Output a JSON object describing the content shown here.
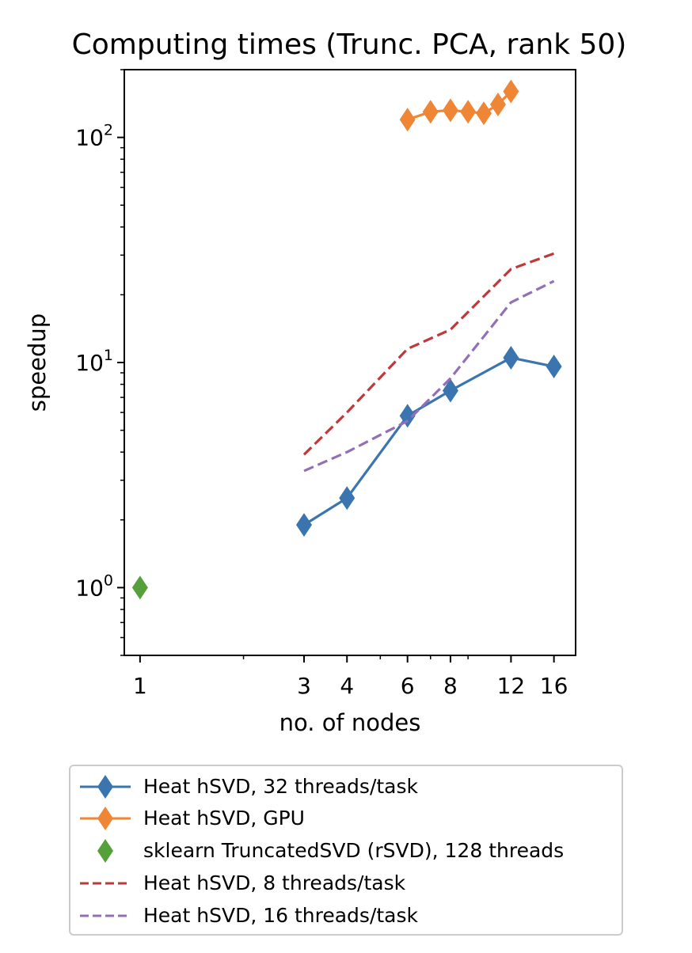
{
  "chart_data": {
    "type": "line",
    "title": "Computing times (Trunc. PCA, rank 50)",
    "xlabel": "no. of nodes",
    "ylabel": "speedup",
    "xscale": "log",
    "yscale": "log",
    "xlim": [
      0.9,
      18.5
    ],
    "ylim": [
      0.5,
      200
    ],
    "xticks": [
      1,
      3,
      4,
      6,
      8,
      12,
      16
    ],
    "xtick_labels": [
      "1",
      "3",
      "4",
      "6",
      "8",
      "12",
      "16"
    ],
    "yticks": [
      1,
      10,
      100
    ],
    "ytick_labels": [
      {
        "base": "10",
        "exp": "0"
      },
      {
        "base": "10",
        "exp": "1"
      },
      {
        "base": "10",
        "exp": "2"
      }
    ],
    "legend_position": "below",
    "series": [
      {
        "name": "Heat hSVD, 32 threads/task",
        "color": "#3a75b0",
        "style": "solid",
        "marker": "diamond",
        "x": [
          3,
          4,
          6,
          8,
          12,
          16
        ],
        "y": [
          1.9,
          2.5,
          5.8,
          7.5,
          10.5,
          9.6
        ]
      },
      {
        "name": "Heat hSVD, GPU",
        "color": "#ef8635",
        "style": "solid",
        "marker": "diamond",
        "x": [
          6,
          7,
          8,
          9,
          10,
          11,
          12
        ],
        "y": [
          120,
          130,
          132,
          130,
          128,
          140,
          160
        ]
      },
      {
        "name": "sklearn TruncatedSVD (rSVD), 128 threads",
        "color": "#56a03c",
        "style": "none",
        "marker": "diamond",
        "x": [
          1
        ],
        "y": [
          1.0
        ]
      },
      {
        "name": "Heat hSVD, 8 threads/task",
        "color": "#c0383a",
        "style": "dashed",
        "marker": "none",
        "x": [
          3,
          4,
          6,
          8,
          12,
          16
        ],
        "y": [
          3.9,
          6.0,
          11.5,
          14.0,
          26.0,
          30.5
        ]
      },
      {
        "name": "Heat hSVD, 16 threads/task",
        "color": "#9270b8",
        "style": "dashed",
        "marker": "none",
        "x": [
          3,
          4,
          6,
          8,
          12,
          16
        ],
        "y": [
          3.3,
          4.0,
          5.5,
          8.5,
          18.5,
          23.0
        ]
      }
    ]
  }
}
